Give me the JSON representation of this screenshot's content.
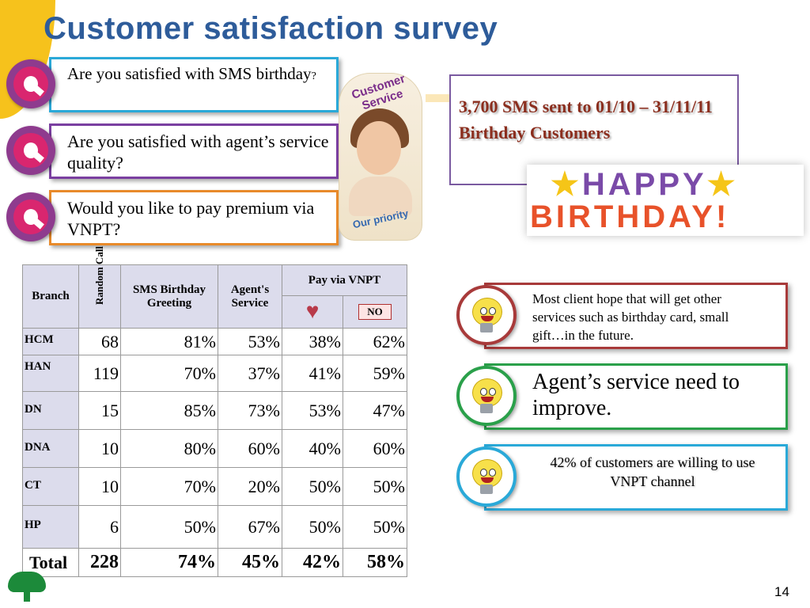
{
  "title": "Customer satisfaction survey",
  "questions": [
    {
      "text": "Are you satisfied with SMS birthday",
      "suffix": "?"
    },
    {
      "text": "Are you satisfied with agent’s service quality?",
      "suffix": ""
    },
    {
      "text": "Would you like to pay premium via VNPT",
      "suffix": "?"
    }
  ],
  "poster": {
    "top": "Customer Service",
    "bottom": "Our priority"
  },
  "sms_note": "3,700 SMS sent to 01/10 – 31/11/11 Birthday Customers",
  "birthday_banner": {
    "line1": "HAPPY",
    "line2": "BIRTHDAY!"
  },
  "table": {
    "headers": {
      "branch": "Branch",
      "random_call": "Random Call",
      "sms": "SMS Birthday Greeting",
      "agent": "Agent's Service",
      "pay": "Pay via VNPT",
      "no": "NO"
    },
    "rows": [
      {
        "branch": "HCM",
        "calls": "68",
        "sms": "81%",
        "agent": "53%",
        "yes": "38%",
        "no": "62%"
      },
      {
        "branch": "HAN",
        "calls": "119",
        "sms": "70%",
        "agent": "37%",
        "yes": "41%",
        "no": "59%"
      },
      {
        "branch": "DN",
        "calls": "15",
        "sms": "85%",
        "agent": "73%",
        "yes": "53%",
        "no": "47%"
      },
      {
        "branch": "DNA",
        "calls": "10",
        "sms": "80%",
        "agent": "60%",
        "yes": "40%",
        "no": "60%"
      },
      {
        "branch": "CT",
        "calls": "10",
        "sms": "70%",
        "agent": "20%",
        "yes": "50%",
        "no": "50%"
      },
      {
        "branch": "HP",
        "calls": "6",
        "sms": "50%",
        "agent": "67%",
        "yes": "50%",
        "no": "50%"
      }
    ],
    "total": {
      "branch": "Total",
      "calls": "228",
      "sms": "74%",
      "agent": "45%",
      "yes": "42%",
      "no": "58%"
    }
  },
  "conclusions": [
    "Most client hope that will get other services such as birthday card, small gift…in the future.",
    "Agent’s service need to improve.",
    "42% of customers are willing to use VNPT channel"
  ],
  "page_number": "14",
  "colors": {
    "title": "#2e5c9a",
    "q1_border": "#2aa9d8",
    "q2_border": "#7a3fa0",
    "q3_border": "#e88a2a",
    "c1_border": "#a83a3a",
    "c2_border": "#2aa04a",
    "c3_border": "#2aa9d8"
  }
}
